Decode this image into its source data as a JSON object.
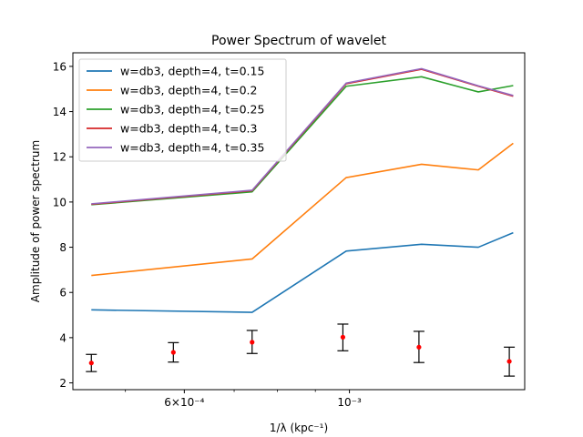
{
  "chart_data": {
    "type": "line",
    "title": "Power Spectrum of wavelet",
    "xlabel": "1/λ (kpc⁻¹)",
    "ylabel": "Amplitude of power spectrum",
    "xscale": "log",
    "xlim": [
      0.000425,
      0.00172
    ],
    "ylim": [
      1.7,
      16.6
    ],
    "yticks": [
      2,
      4,
      6,
      8,
      10,
      12,
      14,
      16
    ],
    "xticks": [
      {
        "value": 0.0006,
        "label": "6×10⁻⁴"
      },
      {
        "value": 0.001,
        "label": "10⁻³"
      }
    ],
    "x_minor_ticks": [
      0.0005,
      0.0007,
      0.0008,
      0.0009
    ],
    "grid": false,
    "legend": "upper-left",
    "x": [
      0.00045,
      0.00074,
      0.00099,
      0.00125,
      0.00149,
      0.00166
    ],
    "series": [
      {
        "name": "w=db3, depth=4, t=0.15",
        "color": "#1f77b4",
        "values": [
          5.23,
          5.12,
          7.83,
          8.13,
          8.0,
          8.64
        ]
      },
      {
        "name": "w=db3, depth=4, t=0.2",
        "color": "#ff7f0e",
        "values": [
          6.75,
          7.48,
          11.08,
          11.67,
          11.42,
          12.6
        ]
      },
      {
        "name": "w=db3, depth=4, t=0.25",
        "color": "#2ca02c",
        "values": [
          9.88,
          10.45,
          15.12,
          15.54,
          14.87,
          15.15
        ]
      },
      {
        "name": "w=db3, depth=4, t=0.3",
        "color": "#d62728",
        "values": [
          9.9,
          10.5,
          15.23,
          15.87,
          15.12,
          14.68
        ]
      },
      {
        "name": "w=db3, depth=4, t=0.35",
        "color": "#9467bd",
        "values": [
          9.92,
          10.52,
          15.26,
          15.9,
          15.14,
          14.71
        ]
      }
    ],
    "error_points": {
      "color": "#ff0000",
      "x": [
        0.00045,
        0.00058,
        0.00074,
        0.00098,
        0.00124,
        0.00164
      ],
      "y": [
        2.88,
        3.35,
        3.8,
        4.02,
        3.58,
        2.95
      ],
      "yerr_low": [
        2.5,
        2.92,
        3.3,
        3.42,
        2.9,
        2.3
      ],
      "yerr_high": [
        3.26,
        3.78,
        4.32,
        4.6,
        4.28,
        3.58
      ]
    }
  }
}
